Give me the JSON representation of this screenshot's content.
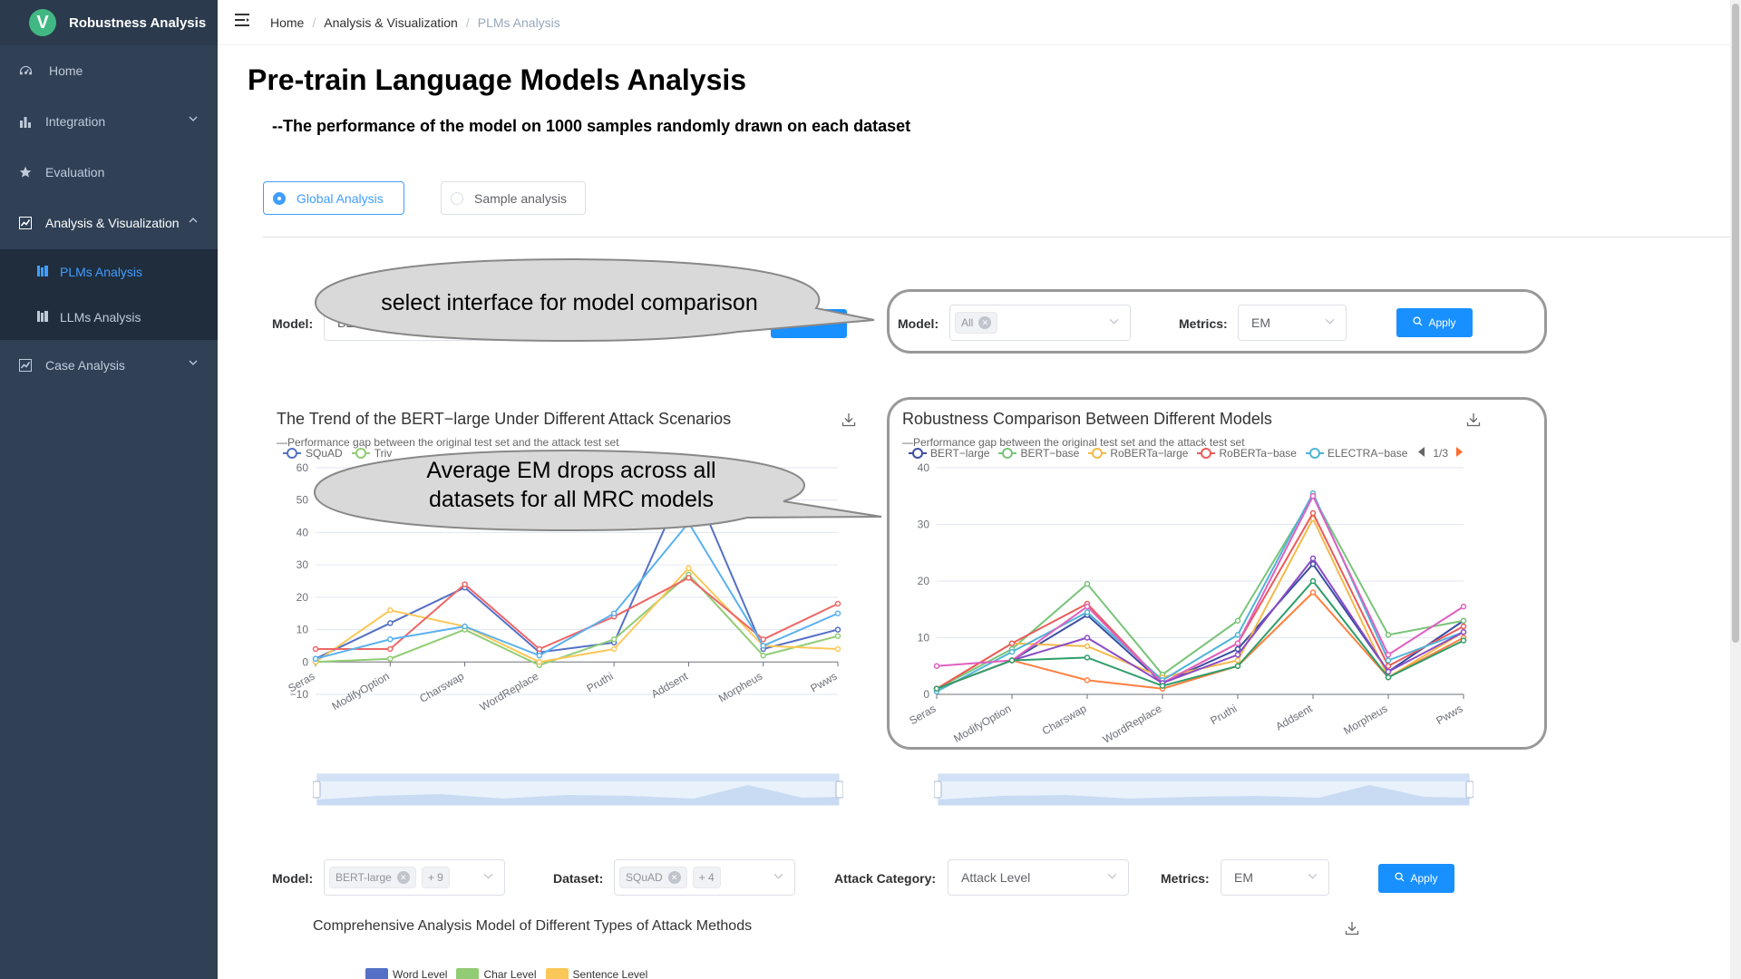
{
  "app": {
    "title": "Robustness Analysis",
    "logo_letter": "V"
  },
  "sidebar": {
    "items": [
      {
        "label": "Home",
        "icon": "dashboard-icon"
      },
      {
        "label": "Integration",
        "icon": "bar-chart-icon"
      },
      {
        "label": "Evaluation",
        "icon": "star-icon"
      },
      {
        "label": "Analysis & Visualization",
        "icon": "line-chart-icon"
      },
      {
        "label": "Case Analysis",
        "icon": "line-chart-icon"
      }
    ],
    "subitems": [
      {
        "label": "PLMs Analysis",
        "icon": "books-icon"
      },
      {
        "label": "LLMs Analysis",
        "icon": "books-icon"
      }
    ]
  },
  "breadcrumb": [
    "Home",
    "Analysis & Visualization",
    "PLMs Analysis"
  ],
  "page": {
    "title": "Pre-train Language Models Analysis",
    "subtitle": "--The performance of the model on 1000 samples randomly drawn on each dataset"
  },
  "tabs": {
    "global": "Global Analysis",
    "sample": "Sample analysis"
  },
  "left_form": {
    "model_label": "Model:",
    "model_value": "BE"
  },
  "right_form": {
    "model_label": "Model:",
    "model_tag": "All",
    "metrics_label": "Metrics:",
    "metrics_value": "EM",
    "apply": "Apply"
  },
  "callouts": {
    "top": "select interface for model comparison",
    "middle_line1": "Average EM drops across all",
    "middle_line2": "datasets for all MRC models"
  },
  "left_chart": {
    "title": "The Trend of the BERT−large Under Different Attack Scenarios",
    "subtitle": "—Performance gap between the original test set and the attack test set",
    "legend": [
      "SQuAD",
      "Triv"
    ]
  },
  "right_chart": {
    "title": "Robustness Comparison Between Different Models",
    "subtitle": "—Performance gap between the original test set and the attack test set",
    "legend": [
      "BERT−large",
      "BERT−base",
      "RoBERTa−large",
      "RoBERTa−base",
      "ELECTRA−base"
    ],
    "page": "1/3"
  },
  "bottom_form": {
    "model_label": "Model:",
    "model_tag": "BERT-large",
    "model_more": "+ 9",
    "dataset_label": "Dataset:",
    "dataset_tag": "SQuAD",
    "dataset_more": "+ 4",
    "attack_label": "Attack Category:",
    "attack_value": "Attack Level",
    "metrics_label": "Metrics:",
    "metrics_value": "EM",
    "apply": "Apply"
  },
  "bottom_chart": {
    "title": "Comprehensive Analysis Model of Different Types of Attack Methods",
    "legend": [
      "Word Level",
      "Char Level",
      "Sentence Level"
    ],
    "legend_colors": [
      "#5470c6",
      "#91cc75",
      "#fac858"
    ]
  },
  "chart_data": [
    {
      "type": "line",
      "title": "The Trend of the BERT−large Under Different Attack Scenarios",
      "categories": [
        "Seras",
        "ModifyOption",
        "Charswap",
        "WordReplace",
        "Pruthi",
        "Addsent",
        "Morpheus",
        "Pwws"
      ],
      "ylim": [
        -10,
        60
      ],
      "yticks": [
        -10,
        0,
        10,
        20,
        30,
        40,
        50,
        60
      ],
      "series": [
        {
          "color": "#5470c6",
          "values": [
            1,
            12,
            23,
            3,
            6,
            58,
            4,
            10
          ]
        },
        {
          "color": "#91cc75",
          "values": [
            0,
            1,
            10,
            -1,
            7,
            27,
            2,
            8
          ]
        },
        {
          "color": "#fac858",
          "values": [
            0,
            16,
            11,
            0,
            4,
            29,
            5,
            4
          ]
        },
        {
          "color": "#ee6666",
          "values": [
            4,
            4,
            24,
            4,
            14,
            26,
            7,
            18
          ]
        },
        {
          "color": "#5ab1ef",
          "values": [
            1,
            7,
            11,
            2,
            15,
            43,
            5,
            15
          ]
        }
      ]
    },
    {
      "type": "line",
      "title": "Robustness Comparison Between Different Models",
      "categories": [
        "Seras",
        "ModifyOption",
        "Charswap",
        "WordReplace",
        "Pruthi",
        "Addsent",
        "Morpheus",
        "Pwws"
      ],
      "ylim": [
        0,
        40
      ],
      "yticks": [
        0,
        10,
        20,
        30,
        40
      ],
      "series": [
        {
          "name": "BERT−large",
          "color": "#3a4ea2",
          "values": [
            1,
            6,
            14,
            2,
            8,
            23,
            4,
            13
          ]
        },
        {
          "name": "BERT−base",
          "color": "#7ac47a",
          "values": [
            1,
            8,
            19.5,
            3.5,
            13,
            35,
            10.5,
            13
          ]
        },
        {
          "name": "RoBERTa−large",
          "color": "#f5b94a",
          "values": [
            1,
            9,
            8.5,
            3,
            6,
            31,
            3,
            11
          ]
        },
        {
          "name": "RoBERTa−base",
          "color": "#ea5b5b",
          "values": [
            1,
            9,
            16,
            2,
            9,
            32,
            5,
            12
          ]
        },
        {
          "name": "ELECTRA−base",
          "color": "#4fb4d8",
          "values": [
            0.5,
            7.5,
            14.5,
            2.5,
            10.5,
            35.5,
            6,
            11
          ]
        },
        {
          "color": "#e060c0",
          "values": [
            5,
            6,
            15.5,
            2,
            9,
            35,
            7,
            15.5
          ]
        },
        {
          "color": "#8a4cc4",
          "values": [
            1,
            6,
            10,
            2,
            7,
            24,
            4,
            11
          ]
        },
        {
          "color": "#ff7f3f",
          "values": [
            1,
            6,
            2.5,
            1,
            5,
            18,
            3,
            10
          ]
        },
        {
          "color": "#2e9e6a",
          "values": [
            1,
            6,
            6.5,
            1.5,
            5,
            20,
            3,
            9.5
          ]
        }
      ]
    }
  ]
}
